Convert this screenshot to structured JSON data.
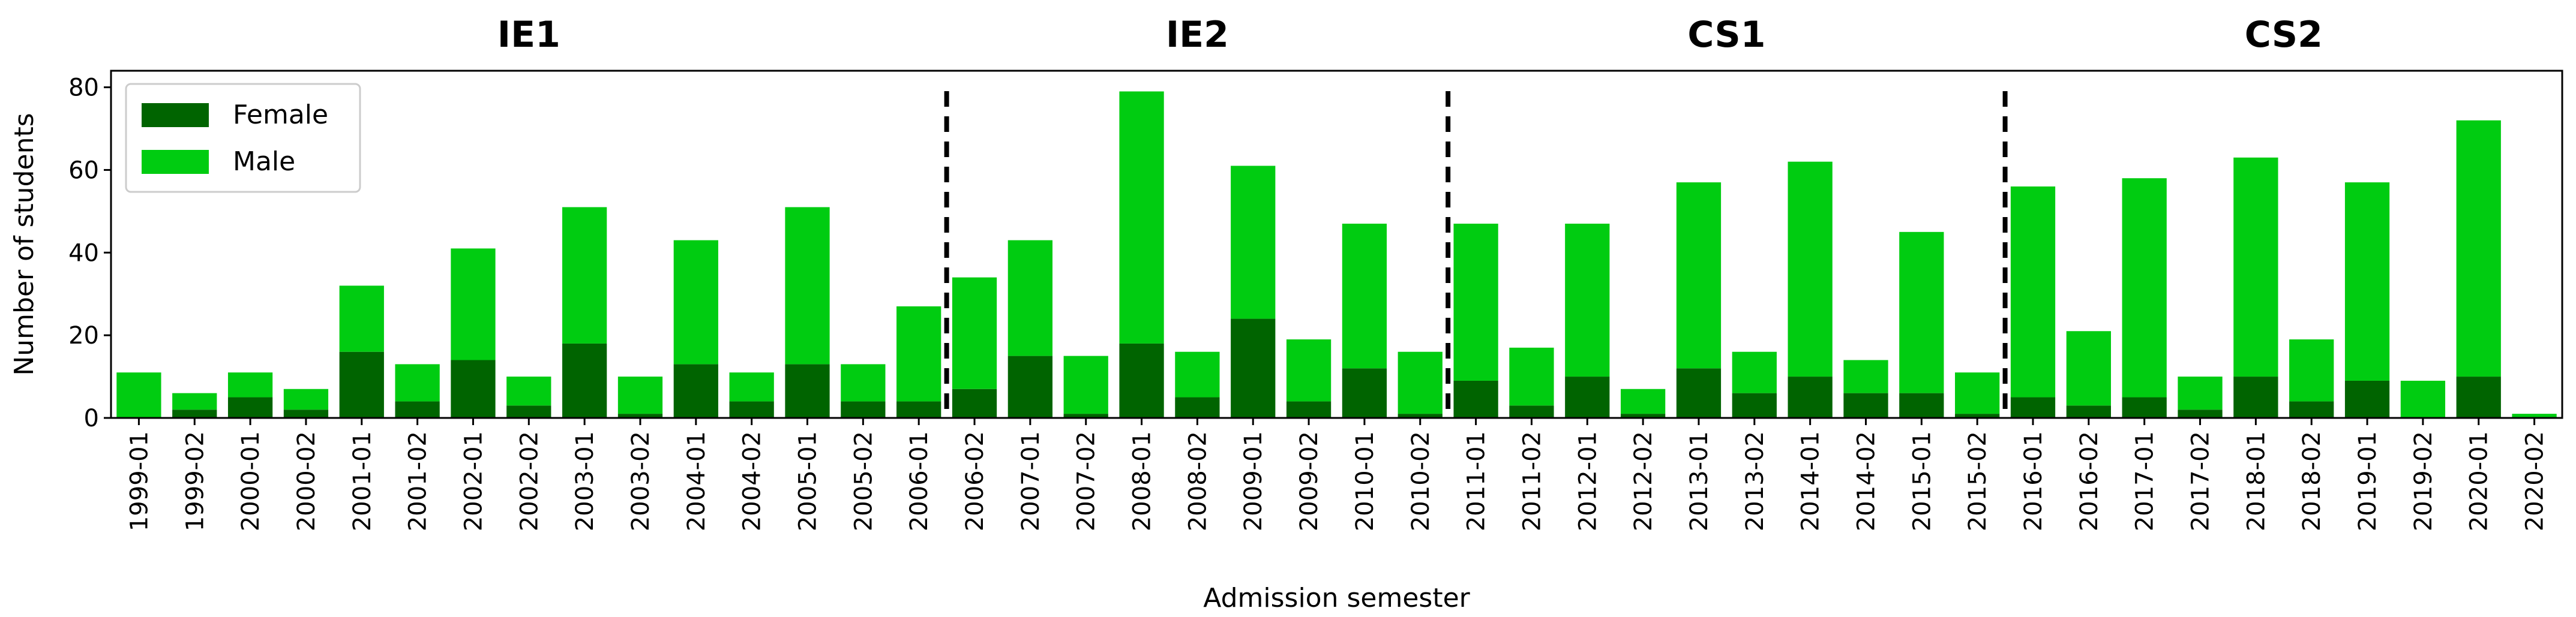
{
  "chart_data": {
    "type": "bar",
    "stacked": true,
    "xlabel": "Admission semester",
    "ylabel": "Number of students",
    "ylim": [
      0,
      84
    ],
    "yticks": [
      0,
      20,
      40,
      60,
      80
    ],
    "grid": false,
    "legend_position": "top-left",
    "categories": [
      "1999-01",
      "1999-02",
      "2000-01",
      "2000-02",
      "2001-01",
      "2001-02",
      "2002-01",
      "2002-02",
      "2003-01",
      "2003-02",
      "2004-01",
      "2004-02",
      "2005-01",
      "2005-02",
      "2006-01",
      "2006-02",
      "2007-01",
      "2007-02",
      "2008-01",
      "2008-02",
      "2009-01",
      "2009-02",
      "2010-01",
      "2010-02",
      "2011-01",
      "2011-02",
      "2012-01",
      "2012-02",
      "2013-01",
      "2013-02",
      "2014-01",
      "2014-02",
      "2015-01",
      "2015-02",
      "2016-01",
      "2016-02",
      "2017-01",
      "2017-02",
      "2018-01",
      "2018-02",
      "2019-01",
      "2019-02",
      "2020-01",
      "2020-02"
    ],
    "series": [
      {
        "name": "Female",
        "color": "#006400",
        "values": [
          0,
          2,
          5,
          2,
          16,
          4,
          14,
          3,
          18,
          1,
          13,
          4,
          13,
          4,
          4,
          7,
          15,
          1,
          18,
          5,
          24,
          4,
          12,
          1,
          9,
          3,
          10,
          1,
          12,
          6,
          10,
          6,
          6,
          1,
          5,
          3,
          5,
          2,
          10,
          4,
          9,
          0,
          10,
          0
        ]
      },
      {
        "name": "Male",
        "color": "#00cc11",
        "values": [
          11,
          4,
          6,
          5,
          16,
          9,
          27,
          7,
          33,
          9,
          30,
          7,
          38,
          9,
          23,
          27,
          28,
          14,
          61,
          11,
          37,
          15,
          35,
          15,
          38,
          14,
          37,
          6,
          45,
          10,
          52,
          8,
          39,
          10,
          51,
          18,
          53,
          8,
          53,
          15,
          48,
          9,
          62,
          1
        ]
      }
    ],
    "phases": [
      {
        "label": "IE1",
        "start_index": 0,
        "end_index": 15
      },
      {
        "label": "IE2",
        "start_index": 15,
        "end_index": 24
      },
      {
        "label": "CS1",
        "start_index": 24,
        "end_index": 34
      },
      {
        "label": "CS2",
        "start_index": 34,
        "end_index": 44
      }
    ],
    "dividers_after_index": [
      14.5,
      23.5,
      33.5
    ]
  }
}
